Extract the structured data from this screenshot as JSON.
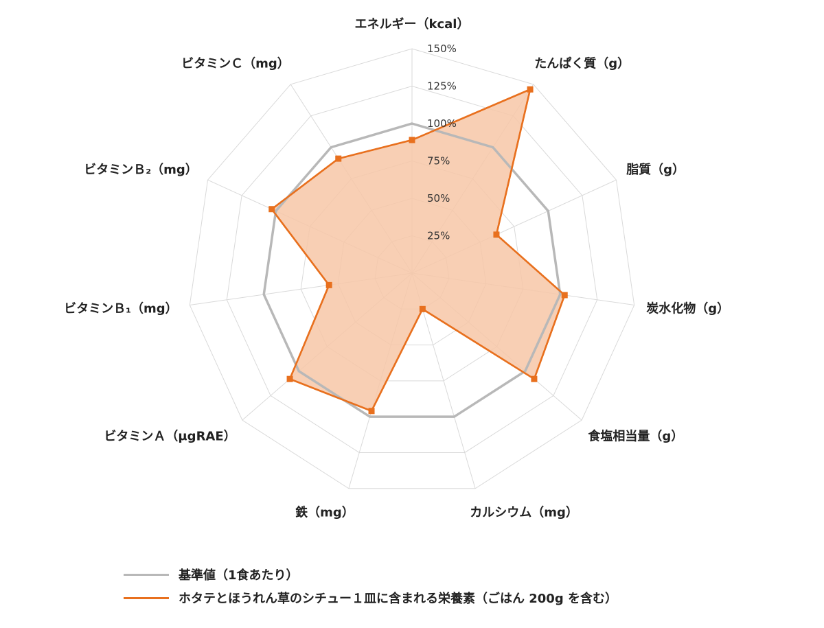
{
  "chart_data": {
    "type": "radar",
    "title": "",
    "axes": [
      "エネルギー（kcal）",
      "たんぱく質（g）",
      "脂質（g）",
      "炭水化物（g）",
      "食塩相当量（g）",
      "カルシウム（mg）",
      "鉄（mg）",
      "ビタミンＡ（μgRAE）",
      "ビタミンＢ₁（mg）",
      "ビタミンＢ₂（mg）",
      "ビタミンＣ（mg）"
    ],
    "radial_ticks": [
      "25%",
      "50%",
      "75%",
      "100%",
      "125%",
      "150%"
    ],
    "rlim": [
      0,
      150
    ],
    "grid": true,
    "series": [
      {
        "name": "基準値（1食あたり）",
        "color": "#b8b8b8",
        "values": [
          100,
          100,
          100,
          100,
          100,
          100,
          100,
          100,
          100,
          100,
          100
        ]
      },
      {
        "name": "ホタテとほうれん草のシチュー１皿に含まれる栄養素（ごはん 200g を含む）",
        "color": "#e8701e",
        "fill": "#f7c7a7",
        "values": [
          89,
          146,
          62,
          103,
          108,
          25,
          96,
          108,
          56,
          103,
          91
        ]
      }
    ]
  },
  "legend": {
    "position": "bottom-left",
    "items": [
      {
        "label": "基準値（1食あたり）",
        "color": "#b8b8b8"
      },
      {
        "label": "ホタテとほうれん草のシチュー１皿に含まれる栄養素（ごはん 200g を含む）",
        "color": "#e8701e"
      }
    ]
  }
}
